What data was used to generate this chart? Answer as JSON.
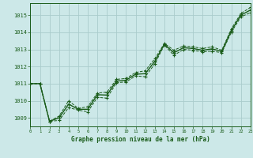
{
  "title": "Graphe pression niveau de la mer (hPa)",
  "background_color": "#cce8e8",
  "grid_color": "#aacccc",
  "line_color": "#1a5c1a",
  "xlim": [
    0,
    23
  ],
  "ylim": [
    1008.5,
    1015.7
  ],
  "yticks": [
    1009,
    1010,
    1011,
    1012,
    1013,
    1014,
    1015
  ],
  "xticks": [
    0,
    1,
    2,
    3,
    4,
    5,
    6,
    7,
    8,
    9,
    10,
    11,
    12,
    13,
    14,
    15,
    16,
    17,
    18,
    19,
    20,
    21,
    22,
    23
  ],
  "series_low": [
    1011.0,
    1011.0,
    1008.8,
    1008.85,
    1009.6,
    1009.45,
    1009.35,
    1010.2,
    1010.15,
    1011.05,
    1011.1,
    1011.45,
    1011.4,
    1012.15,
    1013.25,
    1012.65,
    1013.0,
    1012.95,
    1012.85,
    1012.9,
    1012.8,
    1014.0,
    1014.9,
    1015.15
  ],
  "series_high": [
    1011.0,
    1011.0,
    1008.8,
    1009.1,
    1010.0,
    1009.55,
    1009.65,
    1010.45,
    1010.5,
    1011.25,
    1011.3,
    1011.65,
    1011.75,
    1012.45,
    1013.35,
    1012.95,
    1013.2,
    1013.15,
    1013.05,
    1013.15,
    1012.95,
    1014.2,
    1015.1,
    1015.45
  ],
  "series_mid": [
    1011.0,
    1011.0,
    1008.8,
    1009.0,
    1009.8,
    1009.5,
    1009.5,
    1010.35,
    1010.33,
    1011.15,
    1011.2,
    1011.55,
    1011.58,
    1012.3,
    1013.3,
    1012.8,
    1013.1,
    1013.05,
    1012.95,
    1013.03,
    1012.88,
    1014.1,
    1015.0,
    1015.3
  ]
}
